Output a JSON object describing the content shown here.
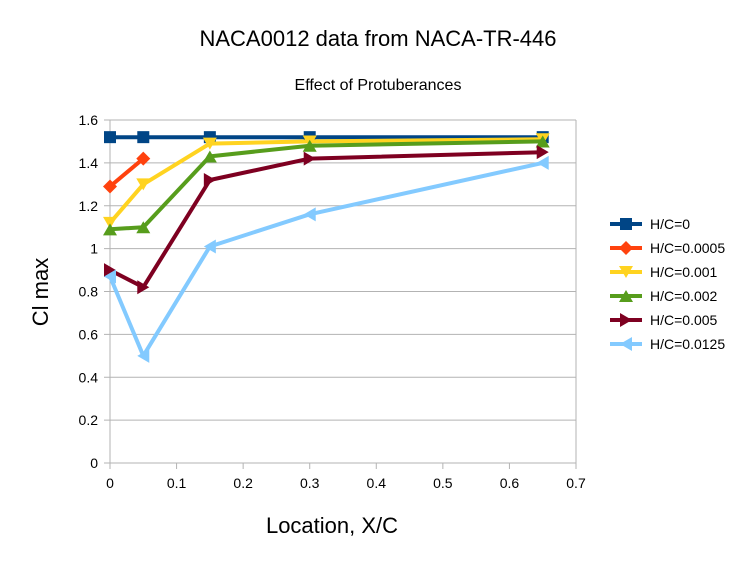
{
  "chart_data": {
    "type": "line",
    "title": "NACA0012 data from NACA-TR-446",
    "subtitle": "Effect of Protuberances",
    "xlabel": "Location, X/C",
    "ylabel": "Cl max",
    "xlim": [
      0,
      0.7
    ],
    "ylim": [
      0,
      1.6
    ],
    "xticks": [
      "0",
      "0.1",
      "0.2",
      "0.3",
      "0.4",
      "0.5",
      "0.6",
      "0.7"
    ],
    "yticks": [
      "0",
      "0.2",
      "0.4",
      "0.6",
      "0.8",
      "1",
      "1.2",
      "1.4",
      "1.6"
    ],
    "grid": "horizontal",
    "legend_position": "right",
    "series": [
      {
        "name": "H/C=0",
        "color": "#004586",
        "marker": "square",
        "x": [
          0,
          0.05,
          0.15,
          0.3,
          0.65
        ],
        "y": [
          1.52,
          1.52,
          1.52,
          1.52,
          1.52
        ]
      },
      {
        "name": "H/C=0.0005",
        "color": "#ff420e",
        "marker": "diamond",
        "x": [
          0,
          0.05
        ],
        "y": [
          1.29,
          1.42
        ]
      },
      {
        "name": "H/C=0.001",
        "color": "#ffd320",
        "marker": "triangle-down",
        "x": [
          0,
          0.05,
          0.15,
          0.3,
          0.65
        ],
        "y": [
          1.12,
          1.3,
          1.49,
          1.5,
          1.51
        ]
      },
      {
        "name": "H/C=0.002",
        "color": "#579d1c",
        "marker": "triangle-up",
        "x": [
          0,
          0.05,
          0.15,
          0.3,
          0.65
        ],
        "y": [
          1.09,
          1.1,
          1.43,
          1.48,
          1.5
        ]
      },
      {
        "name": "H/C=0.005",
        "color": "#7e0021",
        "marker": "triangle-right",
        "x": [
          0,
          0.05,
          0.15,
          0.3,
          0.65
        ],
        "y": [
          0.9,
          0.82,
          1.32,
          1.42,
          1.45
        ]
      },
      {
        "name": "H/C=0.0125",
        "color": "#83caff",
        "marker": "triangle-left",
        "x": [
          0,
          0.05,
          0.15,
          0.3,
          0.65
        ],
        "y": [
          0.87,
          0.5,
          1.01,
          1.16,
          1.4
        ]
      }
    ]
  }
}
